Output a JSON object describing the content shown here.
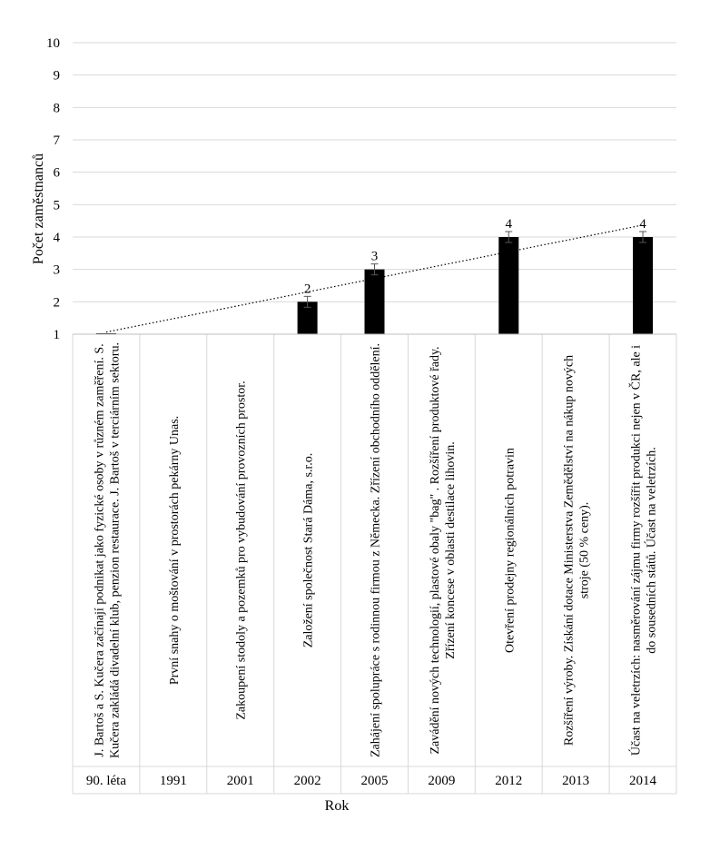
{
  "chart_data": {
    "type": "bar",
    "title": "",
    "xlabel": "Rok",
    "ylabel": "Počet zaměstnanců",
    "ylim": [
      1,
      10
    ],
    "yticks": [
      1,
      2,
      3,
      4,
      5,
      6,
      7,
      8,
      9,
      10
    ],
    "grid": true,
    "bar_color": "#000000",
    "categories": [
      "90. léta",
      "1991",
      "2001",
      "2002",
      "2005",
      "2009",
      "2012",
      "2013",
      "2014"
    ],
    "values": [
      1,
      null,
      null,
      2,
      3,
      null,
      4,
      null,
      4
    ],
    "data_labels": [
      "",
      "",
      "",
      "2",
      "3",
      "",
      "4",
      "",
      "4"
    ],
    "error_bars": true,
    "trendline": {
      "style": "dotted",
      "type": "linear"
    },
    "event_descriptions": [
      "J. Bartoš a S. Kučera začínají podnikat jako fyzické osoby v různém zaměření. S. Kučera zakládá divadelní klub, penzion restaurace. J. Bartoš v terciárním sektoru.",
      "První snahy o moštování  v prostorách pekárny Unas.",
      "Zakoupení stodoly a pozemků pro vybudování provozních prostor.",
      "Založení společnost Stará Dáma, s.r.o.",
      "Zahájení spolupráce s rodinnou firmou z Německa. Zřízení obchodního oddělení.",
      "Zavádění nových technologií, plastové obaly \"bag\" . Rozšíření produktové řady. Zřízení koncese v oblasti destilace lihovin.",
      "Otevření prodejny regionálních potravin",
      "Rozšíření výroby. Získání dotace Ministerstva Zemědělství na nákup nových stroje (50 % ceny).",
      "Účast na veletrzích: nasměrování zájmu firmy rozšířit produkci nejen v ČR, ale i do sousedních států. Účast na veletrzích."
    ]
  }
}
